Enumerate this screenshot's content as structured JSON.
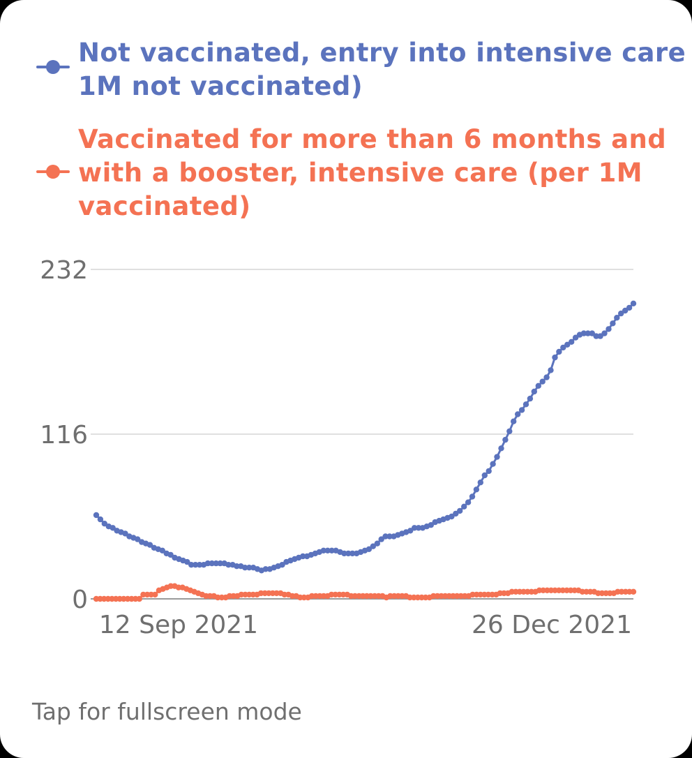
{
  "footer": {
    "hint": "Tap for fullscreen mode"
  },
  "colors": {
    "series_blue": "#5b73bd",
    "series_orange": "#f47253",
    "grid": "#d6d6d6",
    "axis_text": "#6f6f6f",
    "card_bg": "#ffffff"
  },
  "chart_data": {
    "type": "line",
    "title": "",
    "xlabel": "",
    "ylabel": "",
    "x_tick_labels": [
      "12 Sep 2021",
      "26 Dec 2021"
    ],
    "y_tick_labels": [
      "232",
      "116",
      "0"
    ],
    "y_ticks": [
      232,
      116,
      0
    ],
    "ylim": [
      0,
      232
    ],
    "grid": true,
    "legend_position": "top",
    "series": [
      {
        "name": "Not vaccinated, entry into intensive care (per 1M not vaccinated)",
        "legend_lines": [
          "Not vaccinated, entry into intensive care (per",
          "1M not vaccinated)"
        ],
        "color": "#5b73bd",
        "values": [
          59,
          56,
          53,
          51,
          50,
          48,
          47,
          46,
          44,
          43,
          42,
          40,
          39,
          38,
          36,
          35,
          34,
          32,
          31,
          29,
          28,
          27,
          26,
          24,
          24,
          24,
          24,
          25,
          25,
          25,
          25,
          25,
          24,
          24,
          23,
          23,
          22,
          22,
          22,
          21,
          20,
          21,
          21,
          22,
          23,
          24,
          26,
          27,
          28,
          29,
          30,
          30,
          31,
          32,
          33,
          34,
          34,
          34,
          34,
          33,
          32,
          32,
          32,
          32,
          33,
          34,
          35,
          37,
          39,
          42,
          44,
          44,
          44,
          45,
          46,
          47,
          48,
          50,
          50,
          50,
          51,
          52,
          54,
          55,
          56,
          57,
          58,
          60,
          62,
          65,
          68,
          72,
          77,
          82,
          87,
          90,
          95,
          100,
          106,
          112,
          118,
          125,
          130,
          133,
          137,
          141,
          146,
          150,
          153,
          156,
          161,
          170,
          174,
          177,
          179,
          181,
          184,
          186,
          187,
          187,
          187,
          185,
          185,
          187,
          190,
          194,
          198,
          201,
          203,
          205,
          208
        ]
      },
      {
        "name": "Vaccinated for more than 6 months and with a booster, intensive care (per 1M vaccinated)",
        "legend_lines": [
          "Vaccinated for more than 6 months and",
          "with a booster, intensive care (per 1M",
          "vaccinated)"
        ],
        "color": "#f47253",
        "values": [
          0,
          0,
          0,
          0,
          0,
          0,
          0,
          0,
          0,
          0,
          0,
          0,
          3,
          3,
          3,
          3,
          6,
          7,
          8,
          9,
          9,
          8,
          8,
          7,
          6,
          5,
          4,
          3,
          2,
          2,
          2,
          1,
          1,
          1,
          2,
          2,
          2,
          3,
          3,
          3,
          3,
          3,
          4,
          4,
          4,
          4,
          4,
          4,
          3,
          3,
          2,
          2,
          1,
          1,
          1,
          2,
          2,
          2,
          2,
          2,
          3,
          3,
          3,
          3,
          3,
          2,
          2,
          2,
          2,
          2,
          2,
          2,
          2,
          2,
          1,
          2,
          2,
          2,
          2,
          2,
          1,
          1,
          1,
          1,
          1,
          1,
          2,
          2,
          2,
          2,
          2,
          2,
          2,
          2,
          2,
          2,
          3,
          3,
          3,
          3,
          3,
          3,
          3,
          4,
          4,
          4,
          5,
          5,
          5,
          5,
          5,
          5,
          5,
          6,
          6,
          6,
          6,
          6,
          6,
          6,
          6,
          6,
          6,
          6,
          5,
          5,
          5,
          5,
          4,
          4,
          4,
          4,
          4,
          5,
          5,
          5,
          5,
          5
        ]
      }
    ]
  }
}
